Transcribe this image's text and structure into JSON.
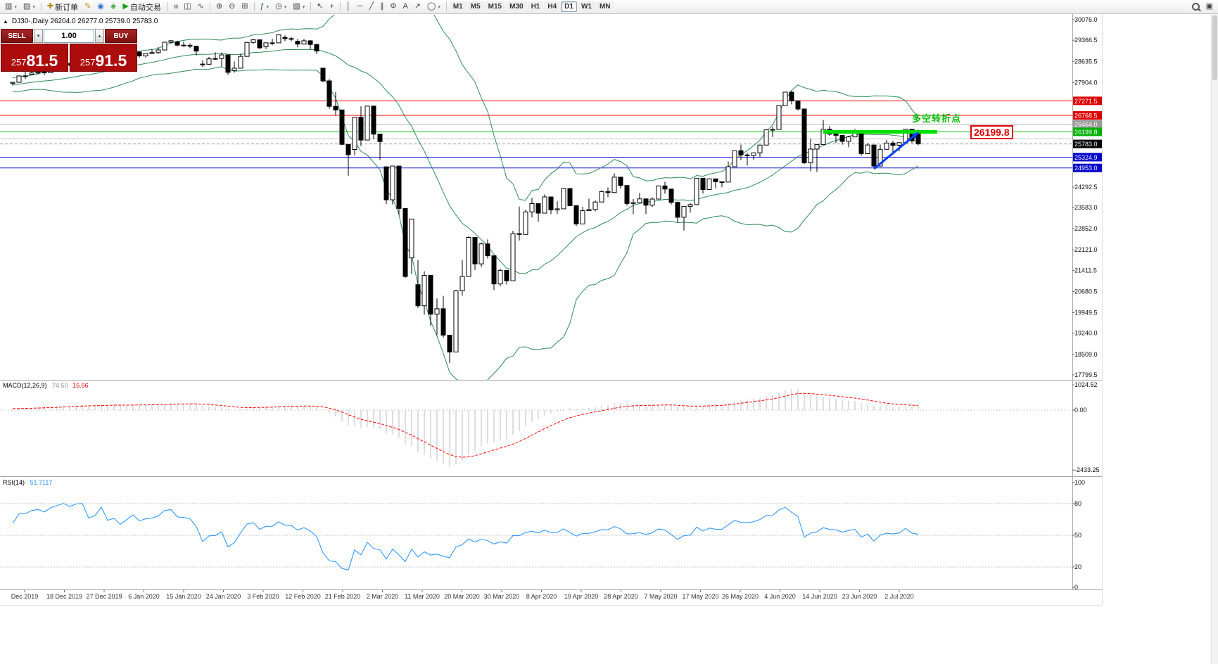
{
  "window": {
    "symbol_header": "DJ30-,Daily 26204.0 26277.0 25739.0 25783.0"
  },
  "icons": {
    "chevron-up": "▴",
    "chevron-down": "▾",
    "collapse": "▲",
    "dropdown": "▾"
  },
  "toolbar": {
    "items": [
      {
        "name": "new-chart-button",
        "glyph": "▥",
        "dd": true
      },
      {
        "name": "profiles-button",
        "glyph": "▤",
        "dd": true
      },
      {
        "name": "sep1",
        "sep": true
      },
      {
        "name": "new-order-button",
        "glyph": "✚",
        "glyph_color": "#b8860b",
        "label": "新订单"
      },
      {
        "name": "mql-editor-button",
        "glyph": "✎",
        "glyph_color": "#b79000"
      },
      {
        "name": "community-button",
        "glyph": "◉",
        "glyph_color": "#2f6fd0"
      },
      {
        "name": "market-button",
        "glyph": "◈",
        "glyph_color": "#3a9e3a"
      },
      {
        "name": "autotrading-button",
        "glyph": "▶",
        "glyph_color": "#18a018",
        "label": "自动交易"
      },
      {
        "name": "sep2",
        "sep": true
      },
      {
        "name": "bar-chart-button",
        "glyph": "≡",
        "rot": true
      },
      {
        "name": "candlestick-chart-button",
        "glyph": "◫"
      },
      {
        "name": "line-chart-button",
        "glyph": "∿"
      },
      {
        "name": "sep3",
        "sep": true
      },
      {
        "name": "zoom-in-button",
        "glyph": "⊕"
      },
      {
        "name": "zoom-out-button",
        "glyph": "⊖"
      },
      {
        "name": "tile-windows-button",
        "glyph": "⊞"
      },
      {
        "name": "sep4",
        "sep": true
      },
      {
        "name": "indicators-button",
        "glyph": "ƒ",
        "glyph_color": "#1a7a1a",
        "dd": true
      },
      {
        "name": "periods-button",
        "glyph": "◷",
        "dd": true
      },
      {
        "name": "templates-button",
        "glyph": "▧",
        "dd": true
      },
      {
        "name": "sep5",
        "sep": true
      },
      {
        "name": "cursor-button",
        "glyph": "↖"
      },
      {
        "name": "crosshair-button",
        "glyph": "+"
      },
      {
        "name": "sep6",
        "sep": true
      },
      {
        "name": "vertical-line-button",
        "glyph": "│"
      },
      {
        "name": "horizontal-line-button",
        "glyph": "─"
      },
      {
        "name": "trendline-button",
        "glyph": "╱"
      },
      {
        "name": "channel-button",
        "glyph": "∥"
      },
      {
        "name": "fibonacci-button",
        "glyph": "Φ"
      },
      {
        "name": "text-button",
        "glyph": "A"
      },
      {
        "name": "arrows-button",
        "glyph": "↗"
      },
      {
        "name": "shapes-button",
        "glyph": "◯",
        "dd": true
      },
      {
        "name": "sep7",
        "sep": true
      }
    ],
    "timeframes": [
      {
        "label": "M1"
      },
      {
        "label": "M5"
      },
      {
        "label": "M15"
      },
      {
        "label": "M30"
      },
      {
        "label": "H1"
      },
      {
        "label": "H4"
      },
      {
        "label": "D1",
        "active": true
      },
      {
        "label": "W1"
      },
      {
        "label": "MN"
      }
    ]
  },
  "trade_panel": {
    "sell_label": "SELL",
    "buy_label": "BUY",
    "volume": "1.00",
    "bid": "25781.5",
    "ask": "25791.5",
    "panel_color": "#ad0c0c"
  },
  "chart_data": {
    "type": "candlestick",
    "title": "DJ30-,Daily",
    "ohlc_header": [
      26204.0,
      26277.0,
      25739.0,
      25783.0
    ],
    "price_axis_ticks": [
      "30076.0",
      "29366.5",
      "28635.5",
      "27904.0",
      "24292.5",
      "23583.0",
      "22852.0",
      "22121.0",
      "21411.5",
      "20680.5",
      "19949.5",
      "19240.0",
      "18509.0",
      "17799.5"
    ],
    "hlines": [
      {
        "price": 27271.5,
        "label": "27271.5",
        "line": "#ff0000",
        "bg": "#dd0000"
      },
      {
        "price": 26768.5,
        "label": "26768.5",
        "line": "#ff0000",
        "bg": "#dd0000"
      },
      {
        "price": 26464.0,
        "label": "26464.0",
        "line": "#b4b4b4",
        "bg": "#9a9a9a"
      },
      {
        "price": 26199.8,
        "label": "26199.8",
        "line": "#00c000",
        "bg": "#00b000"
      },
      {
        "price": 25960.0,
        "label": null,
        "line": "#c4c4c4",
        "bg": null
      },
      {
        "price": 25783.0,
        "label": "25783.0",
        "line": "#999999",
        "bg": "#000000",
        "dash": true
      },
      {
        "price": 25324.9,
        "label": "25324.9",
        "line": "#1515dd",
        "bg": "#0000cc"
      },
      {
        "price": 24953.0,
        "label": "24953.0",
        "line": "#1515dd",
        "bg": "#0000cc"
      }
    ],
    "green_zone": {
      "price": 26199.8,
      "x1_bar": 128,
      "x2_bar": 146,
      "color": "#00e000",
      "width": 5
    },
    "annotation": {
      "text": "多空转折点",
      "color": "#00bb00",
      "callout": "26199.8",
      "arrow": {
        "from_bar": 136,
        "from_price": 24920,
        "to_bar": 143,
        "to_price": 26180,
        "color": "#0040ff",
        "width": 3
      }
    },
    "bollinger": {
      "period": 20,
      "deviation": 2,
      "color": "#2e8b57"
    },
    "macd": {
      "label": "MACD(12,26,9)",
      "value_main": "74.50",
      "value_signal": "15.66",
      "ticks": [
        "1024.52",
        "0.00",
        "-2433.25"
      ],
      "tick_values": [
        1024.52,
        0,
        -2433.25
      ],
      "hist_color": "#bdbdbd",
      "signal_color": "#ff0000"
    },
    "rsi": {
      "label": "RSI(14)",
      "value": "51.7117",
      "color": "#1e90ff",
      "levels": [
        80,
        50,
        20
      ],
      "ticks": [
        100,
        80,
        50,
        20,
        0
      ]
    },
    "dates": [
      "Dec 2019",
      "18 Dec 2019",
      "27 Dec 2019",
      "6 Jan 2020",
      "15 Jan 2020",
      "24 Jan 2020",
      "3 Feb 2020",
      "12 Feb 2020",
      "21 Feb 2020",
      "2 Mar 2020",
      "11 Mar 2020",
      "20 Mar 2020",
      "30 Mar 2020",
      "8 Apr 2020",
      "19 Apr 2020",
      "28 Apr 2020",
      "7 May 2020",
      "17 May 2020",
      "26 May 2020",
      "4 Jun 2020",
      "14 Jun 2020",
      "23 Jun 2020",
      "2 Jul 2020"
    ],
    "warmup_closes": [
      27046,
      27186,
      27347,
      27462,
      27493,
      27675,
      27681,
      27691,
      27783,
      27782,
      27935,
      28005,
      28036,
      28121,
      28066,
      28051,
      28004,
      27876,
      27821,
      27782,
      27850,
      27649,
      27502,
      27583,
      27678,
      27882,
      28015,
      27910,
      27882,
      27849,
      27855,
      27820,
      27881,
      27900,
      27840,
      27870,
      27820,
      27850,
      27860,
      27880
    ],
    "candles": [
      [
        27880,
        27925,
        27801,
        27911
      ],
      [
        27911,
        28150,
        27911,
        28132
      ],
      [
        28132,
        28290,
        28028,
        28135
      ],
      [
        28191,
        28337,
        28191,
        28235
      ],
      [
        28235,
        28328,
        28185,
        28267
      ],
      [
        28267,
        28279,
        28160,
        28239
      ],
      [
        28239,
        28414,
        28239,
        28376
      ],
      [
        28376,
        28473,
        28376,
        28455
      ],
      [
        28455,
        28576,
        28455,
        28551
      ],
      [
        28551,
        28569,
        28460,
        28515
      ],
      [
        28515,
        28624,
        28515,
        28621
      ],
      [
        28621,
        28701,
        28608,
        28645
      ],
      [
        28645,
        28664,
        28428,
        28462
      ],
      [
        28462,
        28547,
        28376,
        28538
      ],
      [
        28638,
        28872,
        28565,
        28869
      ],
      [
        28740,
        28740,
        28500,
        28635
      ],
      [
        28639,
        28779,
        28565,
        28704
      ],
      [
        28704,
        28898,
        28565,
        28584
      ],
      [
        28584,
        28823,
        28584,
        28745
      ],
      [
        28745,
        29009,
        28745,
        28957
      ],
      [
        28957,
        28989,
        28760,
        28824
      ],
      [
        28824,
        28914,
        28770,
        28907
      ],
      [
        28907,
        29054,
        28907,
        28939
      ],
      [
        28939,
        29127,
        28897,
        29030
      ],
      [
        29030,
        29300,
        29030,
        29298
      ],
      [
        29298,
        29373,
        29250,
        29348
      ],
      [
        29310,
        29349,
        29152,
        29196
      ],
      [
        29196,
        29320,
        29138,
        29186
      ],
      [
        29186,
        29259,
        29088,
        29160
      ],
      [
        29160,
        29160,
        28843,
        28990
      ],
      [
        28542,
        28671,
        28440,
        28536
      ],
      [
        28536,
        28790,
        28536,
        28723
      ],
      [
        28723,
        28948,
        28682,
        28734
      ],
      [
        28734,
        28944,
        28460,
        28859
      ],
      [
        28859,
        28859,
        28169,
        28256
      ],
      [
        28320,
        28630,
        28246,
        28400
      ],
      [
        28400,
        28905,
        28400,
        28808
      ],
      [
        28808,
        29309,
        28808,
        29291
      ],
      [
        29291,
        29409,
        29245,
        29380
      ],
      [
        29380,
        29387,
        29056,
        29103
      ],
      [
        29143,
        29287,
        29057,
        29277
      ],
      [
        29277,
        29416,
        29196,
        29276
      ],
      [
        29276,
        29569,
        29276,
        29551
      ],
      [
        29460,
        29535,
        29333,
        29423
      ],
      [
        29423,
        29481,
        29334,
        29398
      ],
      [
        29330,
        29413,
        29118,
        29232
      ],
      [
        29232,
        29409,
        29232,
        29348
      ],
      [
        29348,
        29368,
        29060,
        29220
      ],
      [
        29220,
        29220,
        28892,
        28992
      ],
      [
        28402,
        28403,
        27912,
        27961
      ],
      [
        27961,
        28024,
        26998,
        27081
      ],
      [
        27081,
        27574,
        26777,
        26958
      ],
      [
        26958,
        26958,
        25752,
        25767
      ],
      [
        25767,
        25767,
        24681,
        25409
      ],
      [
        25590,
        26706,
        25391,
        26703
      ],
      [
        26703,
        27084,
        25706,
        25917
      ],
      [
        25917,
        27102,
        25917,
        27090
      ],
      [
        27090,
        27090,
        25943,
        26121
      ],
      [
        26121,
        26121,
        25226,
        25865
      ],
      [
        24992,
        24992,
        23706,
        23851
      ],
      [
        23851,
        25020,
        23690,
        25018
      ],
      [
        25018,
        25018,
        23328,
        23553
      ],
      [
        23553,
        23553,
        21154,
        21201
      ],
      [
        21843,
        23189,
        21285,
        23186
      ],
      [
        20917,
        21768,
        20116,
        20188
      ],
      [
        20188,
        21379,
        19882,
        21237
      ],
      [
        21237,
        21237,
        19498,
        19899
      ],
      [
        19899,
        20442,
        19177,
        20087
      ],
      [
        20087,
        20531,
        19094,
        19174
      ],
      [
        19174,
        19174,
        18214,
        18592
      ],
      [
        18592,
        20738,
        18592,
        20705
      ],
      [
        20705,
        21767,
        20538,
        21200
      ],
      [
        21200,
        22596,
        21200,
        22552
      ],
      [
        22552,
        22552,
        21427,
        21637
      ],
      [
        21637,
        22378,
        21522,
        22327
      ],
      [
        22327,
        22482,
        21823,
        21917
      ],
      [
        21917,
        21917,
        20735,
        20944
      ],
      [
        20944,
        21477,
        20863,
        21413
      ],
      [
        21413,
        21413,
        20922,
        21053
      ],
      [
        21053,
        22783,
        21053,
        22680
      ],
      [
        22680,
        23617,
        22446,
        22654
      ],
      [
        22654,
        23513,
        22654,
        23434
      ],
      [
        23434,
        23924,
        23243,
        23719
      ],
      [
        23719,
        23719,
        23095,
        23391
      ],
      [
        23391,
        24040,
        23391,
        23950
      ],
      [
        23950,
        23950,
        23357,
        23504
      ],
      [
        23504,
        23801,
        23368,
        23538
      ],
      [
        23538,
        24264,
        23538,
        24242
      ],
      [
        24242,
        24242,
        23628,
        23650
      ],
      [
        23650,
        23650,
        22942,
        23018
      ],
      [
        23018,
        23613,
        23018,
        23476
      ],
      [
        23476,
        23885,
        23476,
        23515
      ],
      [
        23515,
        23827,
        23448,
        23775
      ],
      [
        23775,
        24174,
        23775,
        24134
      ],
      [
        24134,
        24278,
        23940,
        24102
      ],
      [
        24102,
        24765,
        24102,
        24634
      ],
      [
        24634,
        24634,
        24235,
        24346
      ],
      [
        24346,
        24346,
        23645,
        23724
      ],
      [
        23724,
        23877,
        23361,
        23750
      ],
      [
        23750,
        24094,
        23750,
        23883
      ],
      [
        23883,
        23883,
        23361,
        23665
      ],
      [
        23665,
        23936,
        23600,
        23876
      ],
      [
        23876,
        24349,
        23876,
        24331
      ],
      [
        24331,
        24473,
        24060,
        24222
      ],
      [
        24222,
        24222,
        23690,
        23765
      ],
      [
        23765,
        23765,
        23069,
        23248
      ],
      [
        23248,
        23626,
        22790,
        23625
      ],
      [
        23625,
        23733,
        23407,
        23685
      ],
      [
        23685,
        24602,
        23685,
        24597
      ],
      [
        24597,
        24597,
        24064,
        24207
      ],
      [
        24207,
        24577,
        24207,
        24576
      ],
      [
        24576,
        24576,
        24247,
        24474
      ],
      [
        24474,
        24482,
        24294,
        24465
      ],
      [
        24465,
        25176,
        24465,
        24995
      ],
      [
        24995,
        25549,
        24995,
        25548
      ],
      [
        25548,
        25758,
        25222,
        25401
      ],
      [
        25401,
        25473,
        25031,
        25383
      ],
      [
        25383,
        25476,
        25233,
        25475
      ],
      [
        25475,
        25743,
        25324,
        25743
      ],
      [
        25743,
        26270,
        25743,
        26270
      ],
      [
        26270,
        26384,
        26019,
        26282
      ],
      [
        26282,
        27111,
        26282,
        27111
      ],
      [
        27111,
        27580,
        27111,
        27572
      ],
      [
        27572,
        27617,
        27151,
        27272
      ],
      [
        27272,
        27272,
        26938,
        26990
      ],
      [
        26990,
        26990,
        25082,
        25128
      ],
      [
        25128,
        25965,
        24843,
        25605
      ],
      [
        25605,
        25764,
        24817,
        25763
      ],
      [
        25763,
        26611,
        25763,
        26290
      ],
      [
        26290,
        26400,
        26068,
        26120
      ],
      [
        26120,
        26265,
        25811,
        26080
      ],
      [
        26080,
        26081,
        25759,
        25871
      ],
      [
        25871,
        26059,
        25667,
        26025
      ],
      [
        26025,
        26298,
        26025,
        26156
      ],
      [
        26156,
        26156,
        25376,
        25445
      ],
      [
        25445,
        25810,
        25445,
        25746
      ],
      [
        25746,
        25746,
        24971,
        25016
      ],
      [
        25016,
        25758,
        25016,
        25596
      ],
      [
        25596,
        25924,
        25596,
        25813
      ],
      [
        25813,
        25896,
        25406,
        25735
      ],
      [
        25735,
        25829,
        25536,
        25827
      ],
      [
        25827,
        26306,
        25827,
        26287
      ],
      [
        26287,
        26287,
        25813,
        25890
      ],
      [
        26204,
        26277,
        25739,
        25783
      ]
    ]
  }
}
